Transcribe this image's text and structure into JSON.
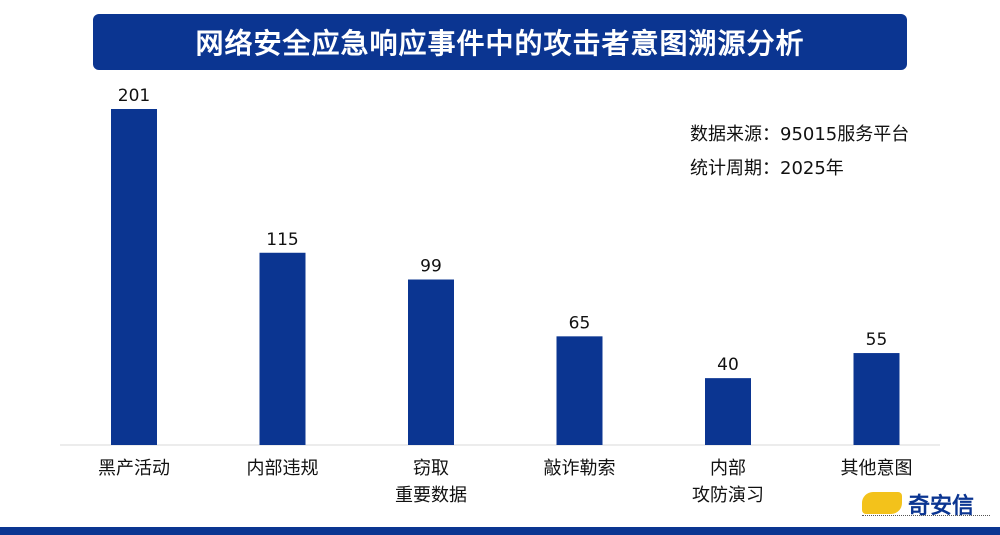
{
  "title": "网络安全应急响应事件中的攻击者意图溯源分析",
  "source_lines": [
    "数据来源：95015服务平台",
    "统计周期：2025年"
  ],
  "brand": {
    "name": "奇安信",
    "color": "#0b3591",
    "accent": "#f3c21b",
    "icon": "qianxin-logo-icon"
  },
  "chart_data": {
    "type": "bar",
    "categories": [
      "黑产活动",
      "内部违规",
      "窃取\n重要数据",
      "敲诈勒索",
      "内部\n攻防演习",
      "其他意图"
    ],
    "values": [
      201,
      115,
      99,
      65,
      40,
      55
    ],
    "bar_color": "#0b3591",
    "title": "网络安全应急响应事件中的攻击者意图溯源分析",
    "xlabel": "",
    "ylabel": "",
    "ylim": [
      0,
      210
    ],
    "grid": false,
    "legend": "none"
  }
}
